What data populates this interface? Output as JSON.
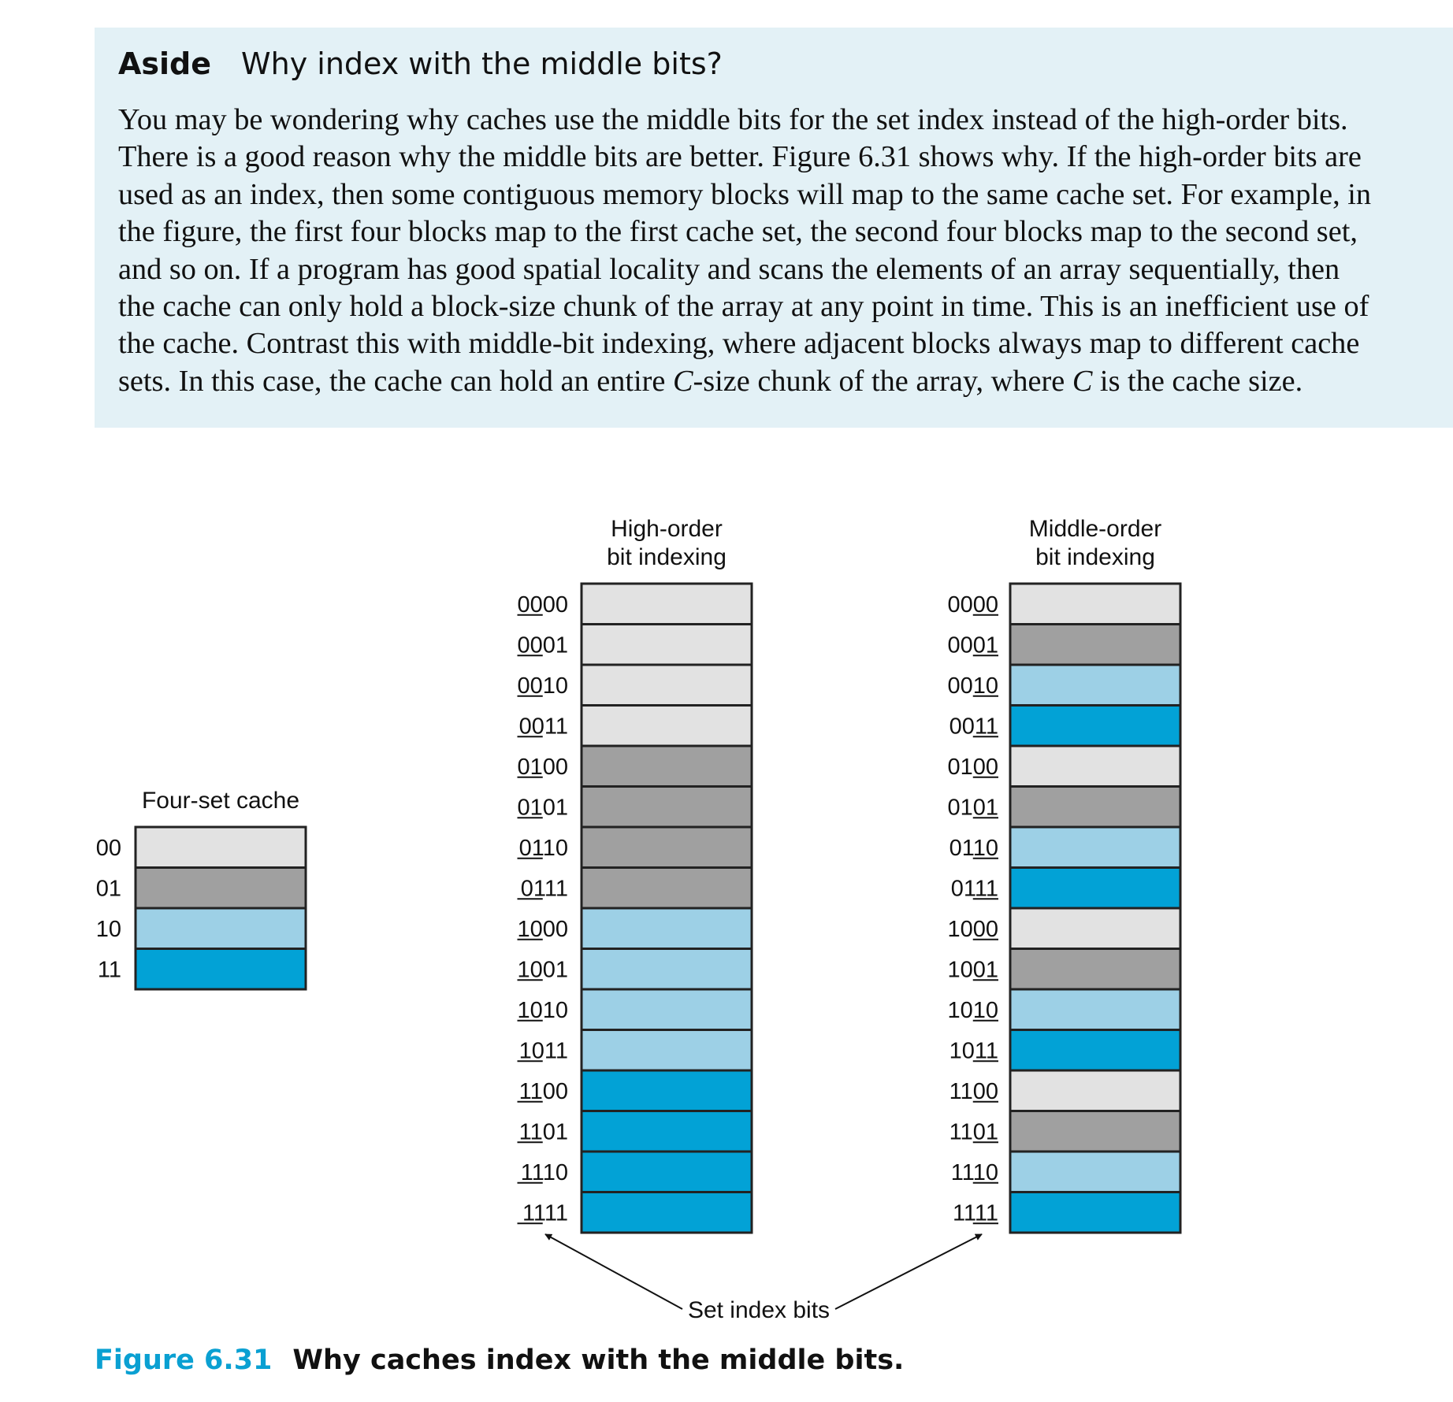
{
  "aside": {
    "label": "Aside",
    "title": "Why index with the middle bits?",
    "lines": [
      "You may be wondering why caches use the middle bits for the set index instead of the high-order bits.",
      "There is a good reason why the middle bits are better. Figure 6.31 shows why. If the high-order bits are",
      "used as an index, then some contiguous memory blocks will map to the same cache set. For example, in",
      "the figure, the first four blocks map to the first cache set, the second four blocks map to the second set,",
      "and so on. If a program has good spatial locality and scans the elements of an array sequentially, then",
      "the cache can only hold a block-size chunk of the array at any point in time. This is an inefficient use of",
      "the cache. Contrast this with middle-bit indexing, where adjacent blocks always map to different cache"
    ],
    "last_line": {
      "before": "sets. In this case, the cache can hold an entire ",
      "var1": "C",
      "middle": "-size chunk of the array, where ",
      "var2": "C",
      "after": " is the cache size."
    }
  },
  "diagram": {
    "set_colors": [
      "#e2e2e2",
      "#a0a0a0",
      "#9dd0e6",
      "#02a2d6"
    ],
    "cache": {
      "title": "Four-set cache",
      "sets": [
        "00",
        "01",
        "10",
        "11"
      ]
    },
    "high_order": {
      "title_line1": "High-order",
      "title_line2": "bit indexing",
      "index_offset": 0,
      "rows": [
        "0000",
        "0001",
        "0010",
        "0011",
        "0100",
        "0101",
        "0110",
        "0111",
        "1000",
        "1001",
        "1010",
        "1011",
        "1100",
        "1101",
        "1110",
        "1111"
      ],
      "set_of_row": [
        0,
        0,
        0,
        0,
        1,
        1,
        1,
        1,
        2,
        2,
        2,
        2,
        3,
        3,
        3,
        3
      ]
    },
    "middle_order": {
      "title_line1": "Middle-order",
      "title_line2": "bit indexing",
      "index_offset": 2,
      "rows": [
        "0000",
        "0001",
        "0010",
        "0011",
        "0100",
        "0101",
        "0110",
        "0111",
        "1000",
        "1001",
        "1010",
        "1011",
        "1100",
        "1101",
        "1110",
        "1111"
      ],
      "set_of_row": [
        0,
        1,
        2,
        3,
        0,
        1,
        2,
        3,
        0,
        1,
        2,
        3,
        0,
        1,
        2,
        3
      ]
    },
    "set_index_label": "Set index bits"
  },
  "caption": {
    "number": "Figure 6.31",
    "text": "Why caches index with the middle bits."
  }
}
